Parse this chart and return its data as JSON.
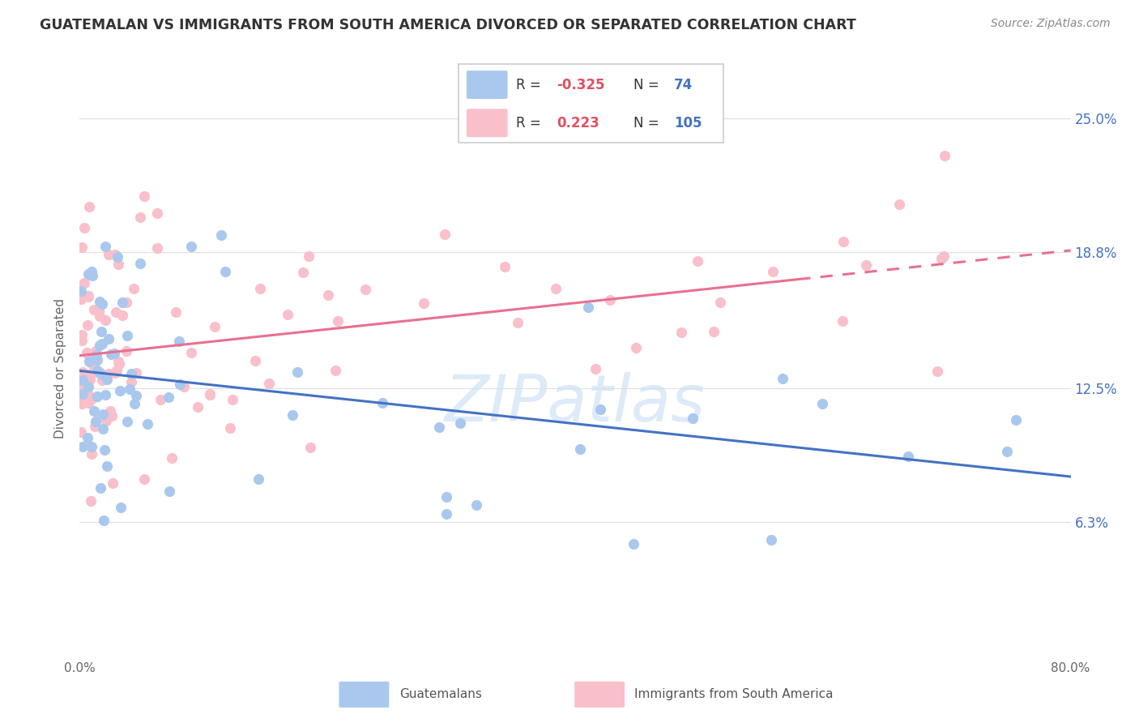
{
  "title": "GUATEMALAN VS IMMIGRANTS FROM SOUTH AMERICA DIVORCED OR SEPARATED CORRELATION CHART",
  "source": "Source: ZipAtlas.com",
  "ylabel": "Divorced or Separated",
  "yticks": [
    "6.3%",
    "12.5%",
    "18.8%",
    "25.0%"
  ],
  "ytick_vals": [
    0.063,
    0.125,
    0.188,
    0.25
  ],
  "xrange": [
    0.0,
    0.8
  ],
  "yrange": [
    0.0,
    0.268
  ],
  "watermark": "ZIPatlas",
  "blue_color": "#aac8ee",
  "pink_color": "#f9bfca",
  "blue_line_color": "#4472c4",
  "pink_line_color": "#e87090",
  "title_color": "#333333",
  "source_color": "#888888",
  "ytick_color": "#4472c4",
  "grid_color": "#e0e0e0"
}
